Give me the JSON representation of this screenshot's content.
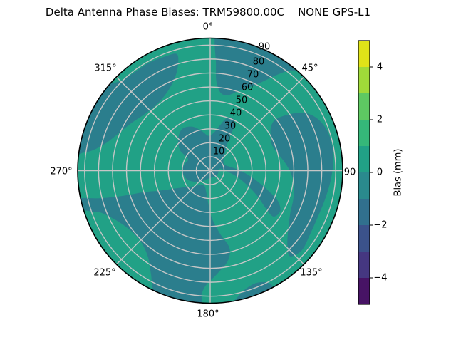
{
  "title": "Delta Antenna Phase Biases: TRM59800.00C    NONE GPS-L1",
  "chart_data": {
    "type": "polar_contourf",
    "title": "Delta Antenna Phase Biases: TRM59800.00C    NONE GPS-L1",
    "rmax": 95,
    "grid": true,
    "grid_color": "#c6c6c6",
    "angular_ticks": [
      {
        "deg": 0,
        "label": "0°"
      },
      {
        "deg": 45,
        "label": "45°"
      },
      {
        "deg": 90,
        "label": "90"
      },
      {
        "deg": 135,
        "label": "135°"
      },
      {
        "deg": 180,
        "label": "180°"
      },
      {
        "deg": 225,
        "label": "225°"
      },
      {
        "deg": 270,
        "label": "270°"
      },
      {
        "deg": 315,
        "label": "315°"
      }
    ],
    "radial_ticks": [
      {
        "value": 10,
        "label": "10"
      },
      {
        "value": 20,
        "label": "20"
      },
      {
        "value": 30,
        "label": "30"
      },
      {
        "value": 40,
        "label": "40"
      },
      {
        "value": 50,
        "label": "50"
      },
      {
        "value": 60,
        "label": "60"
      },
      {
        "value": 70,
        "label": "70"
      },
      {
        "value": 80,
        "label": "80"
      },
      {
        "value": 90,
        "label": "90"
      }
    ],
    "colorbar": {
      "label": "Bias (mm)",
      "min": -5,
      "max": 5,
      "ticks": [
        {
          "value": 4,
          "label": "4"
        },
        {
          "value": 2,
          "label": "2"
        },
        {
          "value": 0,
          "label": "0"
        },
        {
          "value": -2,
          "label": "−2"
        },
        {
          "value": -4,
          "label": "−4"
        }
      ],
      "bands": [
        {
          "from": 4,
          "to": 5,
          "color": "#dfe318"
        },
        {
          "from": 3,
          "to": 4,
          "color": "#a0da39"
        },
        {
          "from": 2,
          "to": 3,
          "color": "#5ec962"
        },
        {
          "from": 1,
          "to": 2,
          "color": "#35b779"
        },
        {
          "from": 0,
          "to": 1,
          "color": "#21a186"
        },
        {
          "from": -1,
          "to": 0,
          "color": "#2a8a8d"
        },
        {
          "from": -2,
          "to": -1,
          "color": "#31708e"
        },
        {
          "from": -3,
          "to": -2,
          "color": "#3b528b"
        },
        {
          "from": -4,
          "to": -3,
          "color": "#453781"
        },
        {
          "from": -5,
          "to": -4,
          "color": "#471365"
        }
      ]
    },
    "fill": {
      "background_band": "0 to 1 mm",
      "background_color": "#21a186",
      "negative_band": "-1 to 0 mm",
      "negative_color": "#2b7e8d"
    },
    "contour_regions": [
      {
        "name": "ne-outer-band",
        "points": [
          [
            2,
            92
          ],
          [
            3,
            78
          ],
          [
            4,
            64
          ],
          [
            8,
            56
          ],
          [
            14,
            56
          ],
          [
            20,
            61
          ],
          [
            26,
            67
          ],
          [
            31,
            75
          ],
          [
            35,
            84
          ],
          [
            38,
            91
          ],
          [
            40,
            95
          ],
          [
            30,
            95
          ],
          [
            20,
            95
          ],
          [
            11,
            95
          ],
          [
            3,
            95
          ]
        ]
      },
      {
        "name": "nw-outer-band",
        "points": [
          [
            -16,
            87
          ],
          [
            -17,
            79
          ],
          [
            -21,
            71
          ],
          [
            -29,
            64
          ],
          [
            -39,
            61
          ],
          [
            -49,
            62
          ],
          [
            -59,
            66
          ],
          [
            -68,
            71
          ],
          [
            -75,
            77
          ],
          [
            -80,
            85
          ],
          [
            -82,
            92
          ],
          [
            -82,
            95
          ],
          [
            -74,
            95
          ],
          [
            -66,
            95
          ],
          [
            -58,
            95
          ],
          [
            -50,
            95
          ],
          [
            -45,
            91
          ],
          [
            -38,
            89
          ],
          [
            -30,
            89
          ],
          [
            -22,
            88
          ]
        ]
      },
      {
        "name": "right-band",
        "points": [
          [
            52,
            60
          ],
          [
            55,
            71
          ],
          [
            59,
            80
          ],
          [
            65,
            86
          ],
          [
            73,
            89
          ],
          [
            83,
            89
          ],
          [
            93,
            87
          ],
          [
            103,
            85
          ],
          [
            113,
            84
          ],
          [
            123,
            85
          ],
          [
            131,
            87
          ],
          [
            137,
            84
          ],
          [
            134,
            77
          ],
          [
            127,
            70
          ],
          [
            118,
            65
          ],
          [
            109,
            63
          ],
          [
            100,
            61
          ],
          [
            92,
            58
          ],
          [
            84,
            54
          ],
          [
            76,
            50
          ],
          [
            68,
            48
          ],
          [
            60,
            50
          ],
          [
            54,
            54
          ]
        ]
      },
      {
        "name": "sw-mass-and-bottom-arm",
        "points": [
          [
            178,
            34
          ],
          [
            171,
            46
          ],
          [
            166,
            57
          ],
          [
            169,
            66
          ],
          [
            176,
            74
          ],
          [
            182,
            82
          ],
          [
            184,
            89
          ],
          [
            184,
            95
          ],
          [
            191,
            95
          ],
          [
            198,
            95
          ],
          [
            205,
            95
          ],
          [
            210,
            85
          ],
          [
            216,
            76
          ],
          [
            225,
            71
          ],
          [
            235,
            72
          ],
          [
            243,
            77
          ],
          [
            249,
            84
          ],
          [
            251,
            90
          ],
          [
            253,
            95
          ],
          [
            256,
            95
          ],
          [
            258,
            95
          ],
          [
            256,
            82
          ],
          [
            254,
            66
          ],
          [
            252,
            50
          ],
          [
            248,
            38
          ],
          [
            243,
            28
          ],
          [
            236,
            21
          ],
          [
            226,
            16
          ],
          [
            213,
            12
          ],
          [
            199,
            12
          ],
          [
            190,
            16
          ],
          [
            183,
            24
          ]
        ]
      },
      {
        "name": "center-pinwheel",
        "points": [
          [
            298,
            18
          ],
          [
            304,
            26
          ],
          [
            314,
            32
          ],
          [
            326,
            36
          ],
          [
            338,
            34
          ],
          [
            348,
            29
          ],
          [
            357,
            25
          ],
          [
            5,
            27
          ],
          [
            12,
            33
          ],
          [
            17,
            39
          ],
          [
            23,
            41
          ],
          [
            28,
            37
          ],
          [
            30,
            29
          ],
          [
            33,
            22
          ],
          [
            41,
            16
          ],
          [
            52,
            12
          ],
          [
            66,
            11
          ],
          [
            78,
            14
          ],
          [
            88,
            20
          ],
          [
            96,
            27
          ],
          [
            103,
            35
          ],
          [
            109,
            44
          ],
          [
            114,
            53
          ],
          [
            120,
            58
          ],
          [
            126,
            56
          ],
          [
            124,
            48
          ],
          [
            118,
            38
          ],
          [
            111,
            28
          ],
          [
            102,
            19
          ],
          [
            90,
            11
          ],
          [
            78,
            7
          ],
          [
            100,
            6
          ],
          [
            130,
            6
          ],
          [
            165,
            5
          ],
          [
            195,
            6
          ],
          [
            215,
            9
          ],
          [
            232,
            13
          ],
          [
            246,
            17
          ],
          [
            258,
            19
          ],
          [
            272,
            20
          ],
          [
            284,
            19
          ]
        ]
      },
      {
        "name": "bottom-rim-patch",
        "points": [
          [
            152,
            95
          ],
          [
            153,
            90
          ],
          [
            158,
            87
          ],
          [
            164,
            89
          ],
          [
            168,
            93
          ],
          [
            169,
            95
          ],
          [
            163,
            95
          ],
          [
            158,
            95
          ]
        ]
      }
    ]
  }
}
